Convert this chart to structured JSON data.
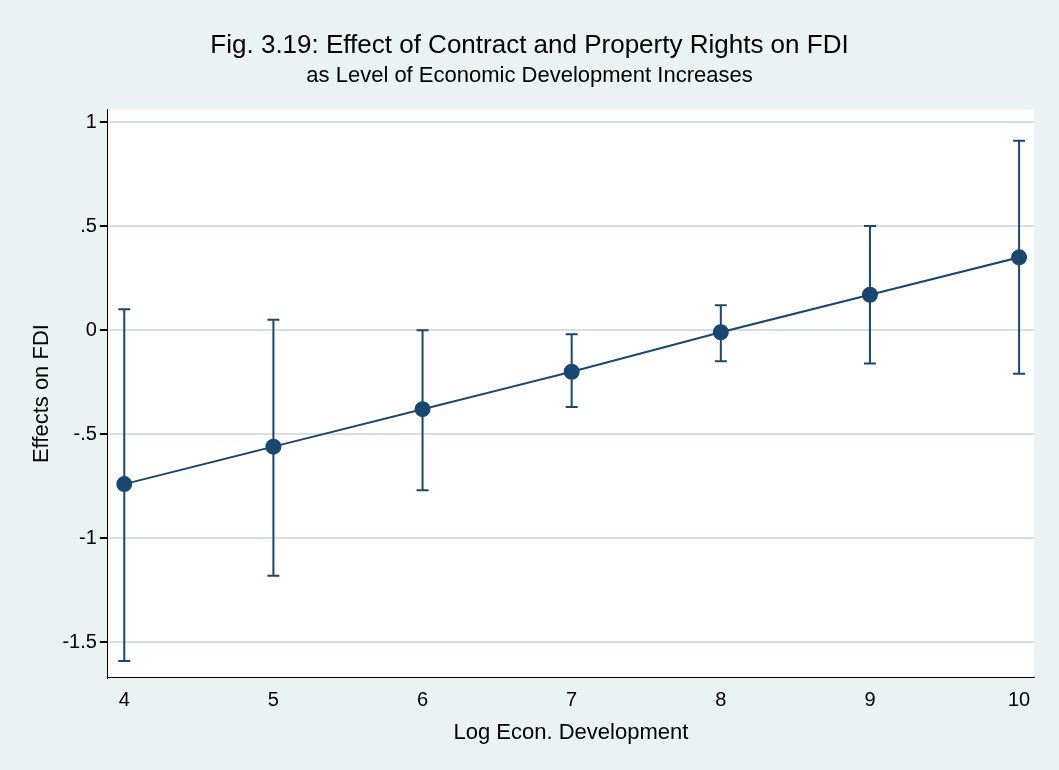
{
  "chart_data": {
    "type": "line",
    "title": "Fig. 3.19: Effect of Contract and Property Rights on FDI",
    "subtitle": "as Level of Economic Development Increases",
    "xlabel": "Log Econ. Development",
    "ylabel": "Effects on FDI",
    "x": [
      4,
      5,
      6,
      7,
      8,
      9,
      10
    ],
    "series": [
      {
        "color": "#1a476f",
        "values": [
          -0.74,
          -0.56,
          -0.38,
          -0.2,
          -0.01,
          0.17,
          0.35
        ],
        "errors": [
          [
            -1.59,
            0.1
          ],
          [
            -1.18,
            0.05
          ],
          [
            -0.77,
            0.0
          ],
          [
            -0.37,
            -0.02
          ],
          [
            -0.15,
            0.12
          ],
          [
            -0.16,
            0.5
          ],
          [
            -0.21,
            0.91
          ]
        ]
      }
    ],
    "xlim": [
      3.89,
      10.1
    ],
    "xticks": [
      4,
      5,
      6,
      7,
      8,
      9,
      10
    ],
    "ylim": [
      -1.67,
      1.06
    ],
    "yticks": [
      {
        "value": -1.5,
        "label": "-1.5"
      },
      {
        "value": -1,
        "label": "-1"
      },
      {
        "value": -0.5,
        "label": "-.5"
      },
      {
        "value": 0,
        "label": "0"
      },
      {
        "value": 0.5,
        "label": ".5"
      },
      {
        "value": 1,
        "label": "1"
      }
    ],
    "grid": "y",
    "marker": "circle",
    "line_style": "solid",
    "legend": false
  }
}
